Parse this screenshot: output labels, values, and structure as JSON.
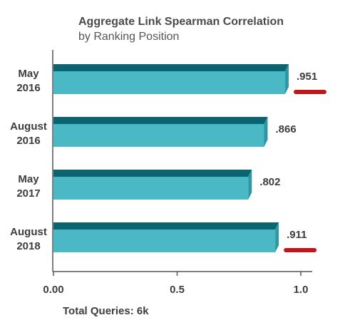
{
  "chart_data": {
    "type": "bar",
    "orientation": "horizontal",
    "title": "Aggregate Link Spearman Correlation",
    "subtitle": "by Ranking Position",
    "categories": [
      [
        "May",
        "2016"
      ],
      [
        "August",
        "2016"
      ],
      [
        "May",
        "2017"
      ],
      [
        "August",
        "2018"
      ]
    ],
    "values": [
      0.951,
      0.866,
      0.802,
      0.911
    ],
    "value_labels": [
      ".951",
      ".866",
      ".802",
      ".911"
    ],
    "highlighted": [
      true,
      false,
      false,
      true
    ],
    "xlim": [
      0,
      1.0
    ],
    "x_ticks": [
      0,
      0.5,
      1.0
    ],
    "x_tick_labels": [
      "0.00",
      "0.5",
      "1.0"
    ],
    "grid": false,
    "xlabel": "",
    "ylabel": ""
  },
  "footer": "Total Queries: 6k",
  "colors": {
    "bar_face": "#4ab8c5",
    "bar_top": "#0c6470",
    "bar_side": "#2c98a5",
    "highlight": "#c0161b",
    "axis": "#555555"
  }
}
